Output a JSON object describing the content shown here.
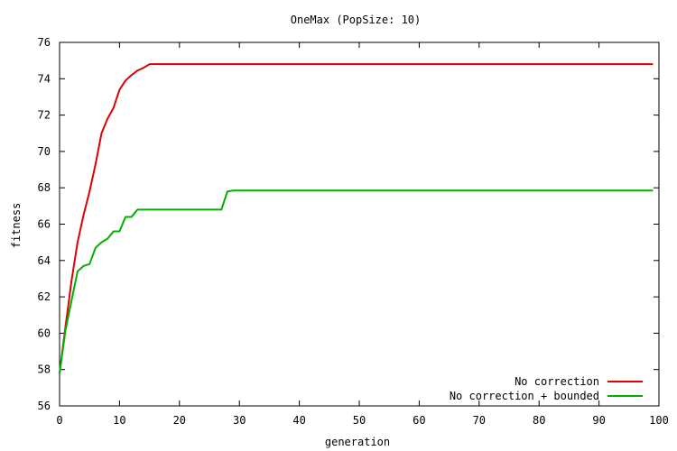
{
  "chart_data": {
    "type": "line",
    "title": "OneMax (PopSize: 10)",
    "xlabel": "generation",
    "ylabel": "fitness",
    "xlim": [
      0,
      100
    ],
    "ylim": [
      56,
      76
    ],
    "xticks": [
      0,
      10,
      20,
      30,
      40,
      50,
      60,
      70,
      80,
      90,
      100
    ],
    "yticks": [
      56,
      58,
      60,
      62,
      64,
      66,
      68,
      70,
      72,
      74,
      76
    ],
    "grid": false,
    "legend_position": "bottom-right",
    "series": [
      {
        "name": "No correction",
        "color": "#e00000",
        "x": [
          0,
          1,
          2,
          3,
          4,
          5,
          6,
          7,
          8,
          9,
          10,
          11,
          12,
          13,
          14,
          15,
          99
        ],
        "y": [
          57.8,
          60.4,
          62.9,
          65.0,
          66.5,
          67.8,
          69.3,
          71.0,
          71.8,
          72.4,
          73.4,
          73.9,
          74.2,
          74.45,
          74.6,
          74.8,
          74.8
        ]
      },
      {
        "name": "No correction + bounded",
        "color": "#00b000",
        "x": [
          0,
          1,
          2,
          3,
          4,
          5,
          6,
          7,
          8,
          9,
          10,
          11,
          12,
          13,
          14,
          15,
          27,
          28,
          29,
          99
        ],
        "y": [
          57.8,
          60.2,
          61.8,
          63.4,
          63.7,
          63.8,
          64.7,
          65.0,
          65.2,
          65.6,
          65.6,
          66.4,
          66.4,
          66.8,
          66.8,
          66.8,
          66.8,
          67.8,
          67.85,
          67.85
        ]
      }
    ]
  }
}
